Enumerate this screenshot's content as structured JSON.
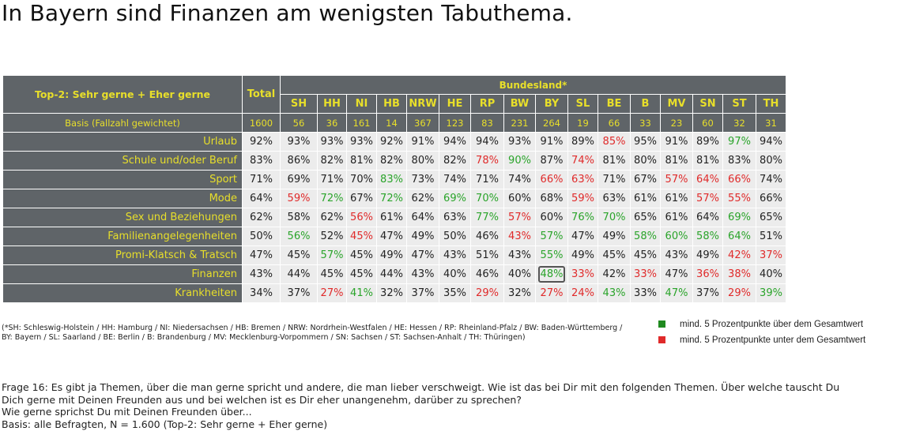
{
  "title": "In Bayern sind Finanzen am wenigsten Tabuthema.",
  "chart_data": {
    "type": "table",
    "corner_label": "Top-2: Sehr gerne + Eher gerne",
    "total_label": "Total",
    "group_label": "Bundesland*",
    "columns": [
      "SH",
      "HH",
      "NI",
      "HB",
      "NRW",
      "HE",
      "RP",
      "BW",
      "BY",
      "SL",
      "BE",
      "B",
      "MV",
      "SN",
      "ST",
      "TH"
    ],
    "basis": {
      "label": "Basis (Fallzahl gewichtet)",
      "total": "1600",
      "values": [
        "56",
        "36",
        "161",
        "14",
        "367",
        "123",
        "83",
        "231",
        "264",
        "19",
        "66",
        "33",
        "23",
        "60",
        "32",
        "31"
      ]
    },
    "rows": [
      {
        "label": "Urlaub",
        "total": "92%",
        "values": [
          "93%",
          "93%",
          "93%",
          "92%",
          "91%",
          "94%",
          "94%",
          "93%",
          "91%",
          "89%",
          "85%",
          "95%",
          "91%",
          "89%",
          "97%",
          "94%"
        ]
      },
      {
        "label": "Schule und/oder Beruf",
        "total": "83%",
        "values": [
          "86%",
          "82%",
          "81%",
          "82%",
          "80%",
          "82%",
          "78%",
          "90%",
          "87%",
          "74%",
          "81%",
          "80%",
          "81%",
          "81%",
          "83%",
          "80%"
        ]
      },
      {
        "label": "Sport",
        "total": "71%",
        "values": [
          "69%",
          "71%",
          "70%",
          "83%",
          "73%",
          "74%",
          "71%",
          "74%",
          "66%",
          "63%",
          "71%",
          "67%",
          "57%",
          "64%",
          "66%",
          "74%"
        ]
      },
      {
        "label": "Mode",
        "total": "64%",
        "values": [
          "59%",
          "72%",
          "67%",
          "72%",
          "62%",
          "69%",
          "70%",
          "60%",
          "68%",
          "59%",
          "63%",
          "61%",
          "61%",
          "57%",
          "55%",
          "66%"
        ]
      },
      {
        "label": "Sex und Beziehungen",
        "total": "62%",
        "values": [
          "58%",
          "62%",
          "56%",
          "61%",
          "64%",
          "63%",
          "77%",
          "57%",
          "60%",
          "76%",
          "70%",
          "65%",
          "61%",
          "64%",
          "69%",
          "65%"
        ]
      },
      {
        "label": "Familienangelegenheiten",
        "total": "50%",
        "values": [
          "56%",
          "52%",
          "45%",
          "47%",
          "49%",
          "50%",
          "46%",
          "43%",
          "57%",
          "47%",
          "49%",
          "58%",
          "60%",
          "58%",
          "64%",
          "51%"
        ]
      },
      {
        "label": "Promi-Klatsch & Tratsch",
        "total": "47%",
        "values": [
          "45%",
          "57%",
          "45%",
          "49%",
          "47%",
          "43%",
          "51%",
          "43%",
          "55%",
          "49%",
          "45%",
          "45%",
          "43%",
          "49%",
          "42%",
          "37%"
        ]
      },
      {
        "label": "Finanzen",
        "total": "43%",
        "values": [
          "44%",
          "45%",
          "45%",
          "44%",
          "43%",
          "40%",
          "46%",
          "40%",
          "48%",
          "33%",
          "42%",
          "33%",
          "47%",
          "36%",
          "38%",
          "40%"
        ]
      },
      {
        "label": "Krankheiten",
        "total": "34%",
        "values": [
          "37%",
          "27%",
          "41%",
          "32%",
          "37%",
          "35%",
          "29%",
          "32%",
          "27%",
          "24%",
          "43%",
          "33%",
          "47%",
          "37%",
          "29%",
          "39%"
        ]
      }
    ],
    "highlighted_cell": {
      "row": "Finanzen",
      "column": "BY"
    },
    "colors": {
      "above": "#2aa42a",
      "below": "#e02a2a",
      "header_bg": "#5f6468",
      "header_text": "#e8df2a",
      "cell_bg": "#ececec"
    }
  },
  "footnote": [
    "(*SH: Schleswig-Holstein / HH: Hamburg / NI: Niedersachsen / HB: Bremen / NRW: Nordrhein-Westfalen / HE: Hessen / RP: Rheinland-Pfalz / BW: Baden-Württemberg /",
    "BY: Bayern / SL: Saarland / BE: Berlin / B: Brandenburg / MV: Mecklenburg-Vorpommern / SN: Sachsen / ST: Sachsen-Anhalt / TH: Thüringen)"
  ],
  "legend": {
    "above": {
      "label": "mind. 5 Prozentpunkte über dem Gesamtwert",
      "color": "#1f8a1f"
    },
    "below": {
      "label": "mind. 5 Prozentpunkte unter dem Gesamtwert",
      "color": "#e02a2a"
    }
  },
  "question": [
    "Frage 16: Es gibt ja Themen, über die man gerne spricht und andere, die man lieber verschweigt. Wie ist das bei Dir mit den folgenden Themen. Über welche tauscht Du",
    "Dich gerne mit Deinen Freunden aus und bei welchen ist es Dir eher unangenehm, darüber zu sprechen?",
    "Wie gerne sprichst Du mit Deinen Freunden über...",
    "Basis: alle Befragten, N = 1.600 (Top-2: Sehr gerne + Eher gerne)"
  ]
}
